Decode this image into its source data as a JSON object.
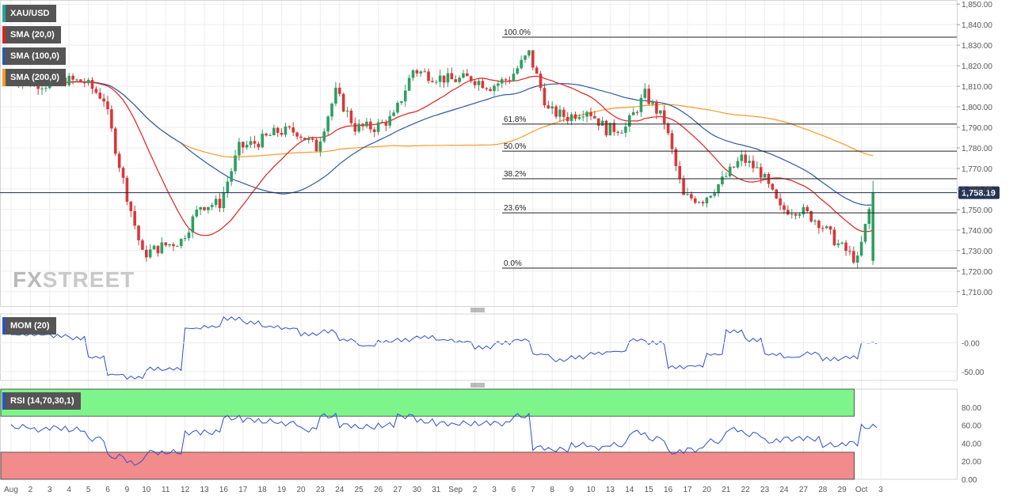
{
  "chart_data": {
    "type": "candlestick",
    "symbol": "XAU/USD",
    "last_price_label": "1,758.19",
    "last_price": 1758.19,
    "price_axis": {
      "range": [
        1703,
        1852
      ],
      "ticks": [
        1850,
        1840,
        1830,
        1820,
        1810,
        1800,
        1790,
        1780,
        1770,
        1760,
        1750,
        1740,
        1730,
        1720,
        1710
      ],
      "tick_labels": [
        "1,850.00",
        "1,840.00",
        "1,830.00",
        "1,820.00",
        "1,810.00",
        "1,800.00",
        "1,790.00",
        "1,780.00",
        "1,770.00",
        "1,760.00",
        "1,750.00",
        "1,740.00",
        "1,730.00",
        "1,720.00",
        "1,710.00"
      ]
    },
    "x_axis": {
      "labels": [
        "Aug",
        "2",
        "3",
        "4",
        "5",
        "6",
        "9",
        "10",
        "11",
        "12",
        "13",
        "16",
        "17",
        "18",
        "19",
        "20",
        "23",
        "24",
        "25",
        "26",
        "27",
        "30",
        "31",
        "Sep",
        "2",
        "3",
        "6",
        "7",
        "8",
        "9",
        "10",
        "13",
        "14",
        "15",
        "16",
        "17",
        "20",
        "21",
        "22",
        "23",
        "24",
        "27",
        "28",
        "29",
        "Oct",
        "3"
      ]
    },
    "fibonacci": {
      "levels": [
        {
          "label": "100.0%",
          "price": 1833.9
        },
        {
          "label": "61.8%",
          "price": 1791.6
        },
        {
          "label": "50.0%",
          "price": 1778.4
        },
        {
          "label": "38.2%",
          "price": 1765.0
        },
        {
          "label": "23.6%",
          "price": 1748.4
        },
        {
          "label": "0.0%",
          "price": 1721.5
        }
      ]
    },
    "indicators": [
      {
        "name": "SMA (20,0)",
        "color": "#e02020"
      },
      {
        "name": "SMA (100,0)",
        "color": "#2c5aa0"
      },
      {
        "name": "SMA (200,0)",
        "color": "#f59a23"
      }
    ],
    "daily_closes": [
      1812,
      1811,
      1813,
      1812,
      1804,
      1764,
      1728,
      1732,
      1735,
      1752,
      1753,
      1780,
      1783,
      1788,
      1788,
      1780,
      1807,
      1790,
      1790,
      1795,
      1818,
      1815,
      1813,
      1814,
      1810,
      1814,
      1826,
      1798,
      1795,
      1799,
      1789,
      1790,
      1806,
      1793,
      1756,
      1755,
      1764,
      1775,
      1768,
      1750,
      1750,
      1744,
      1733,
      1725,
      1758
    ],
    "mom_panel": {
      "label": "MOM (20)",
      "ticks": [
        0,
        -50
      ],
      "tick_labels": [
        "-0.00",
        "-50.00"
      ],
      "range": [
        -65,
        50
      ],
      "values": [
        14,
        14,
        12,
        8,
        -25,
        -55,
        -60,
        -45,
        -45,
        25,
        28,
        42,
        35,
        28,
        25,
        15,
        20,
        5,
        -5,
        2,
        5,
        10,
        5,
        2,
        -8,
        0,
        5,
        -20,
        -30,
        -25,
        -18,
        -15,
        5,
        0,
        -42,
        -40,
        -20,
        20,
        5,
        -20,
        -25,
        -18,
        -28,
        -25,
        0
      ]
    },
    "rsi_panel": {
      "label": "RSI (14,70,30,1)",
      "ticks": [
        80,
        60,
        40,
        20,
        0
      ],
      "tick_labels": [
        "80.00",
        "60.00",
        "40.00",
        "20.00",
        "0.00"
      ],
      "range": [
        0,
        100
      ],
      "overbought": 70,
      "oversold": 30,
      "values": [
        58,
        55,
        57,
        55,
        45,
        25,
        18,
        30,
        30,
        52,
        52,
        68,
        66,
        64,
        62,
        55,
        70,
        60,
        58,
        60,
        70,
        64,
        62,
        62,
        62,
        62,
        70,
        35,
        33,
        38,
        35,
        38,
        52,
        45,
        30,
        33,
        42,
        55,
        50,
        42,
        45,
        45,
        38,
        40,
        58
      ]
    }
  },
  "branding": {
    "fx": "FX",
    "street": "STREET"
  }
}
